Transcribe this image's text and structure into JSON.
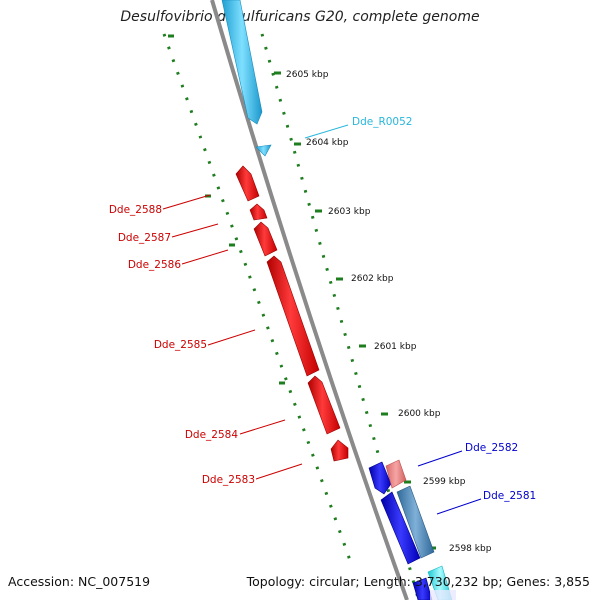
{
  "title": "Desulfovibrio desulfuricans G20, complete genome",
  "footer": {
    "accession": "Accession: NC_007519",
    "info": "Topology: circular; Length: 3,730,232 bp; Genes: 3,855"
  },
  "colors": {
    "backbone": "#7a7a7a",
    "tick": "#1e7d1e",
    "gene_red": "#e01818",
    "gene_light_red": "#ee8a8a",
    "gene_light_blue": "#3cc0ec",
    "gene_blue": "#1010dd",
    "gene_steel": "#4a86b8",
    "gene_cyan": "#2ee0ea",
    "label_red": "#cc0000",
    "label_cyan": "#28b6dc",
    "label_blue": "#0000cc"
  },
  "ticks": [
    {
      "label": "2605 kbp",
      "kbp": 2605
    },
    {
      "label": "2604 kbp",
      "kbp": 2604
    },
    {
      "label": "2603 kbp",
      "kbp": 2603
    },
    {
      "label": "2602 kbp",
      "kbp": 2602
    },
    {
      "label": "2601 kbp",
      "kbp": 2601
    },
    {
      "label": "2600 kbp",
      "kbp": 2600
    },
    {
      "label": "2599 kbp",
      "kbp": 2599
    },
    {
      "label": "2598 kbp",
      "kbp": 2598
    }
  ],
  "genes": [
    {
      "label": "Dde_R0052",
      "color": "label_cyan"
    },
    {
      "label": "Dde_2588",
      "color": "label_red"
    },
    {
      "label": "Dde_2587",
      "color": "label_red"
    },
    {
      "label": "Dde_2586",
      "color": "label_red"
    },
    {
      "label": "Dde_2585",
      "color": "label_red"
    },
    {
      "label": "Dde_2584",
      "color": "label_red"
    },
    {
      "label": "Dde_2583",
      "color": "label_red"
    },
    {
      "label": "Dde_2582",
      "color": "label_blue"
    },
    {
      "label": "Dde_2581",
      "color": "label_blue"
    }
  ]
}
